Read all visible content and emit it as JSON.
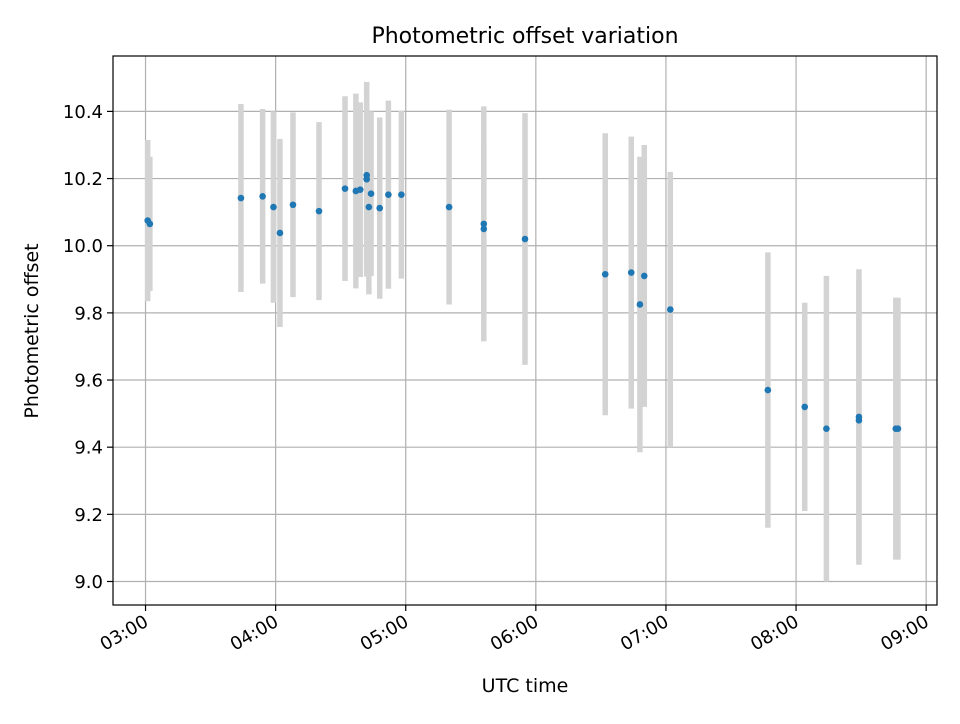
{
  "chart_data": {
    "type": "scatter",
    "title": "Photometric offset variation",
    "xlabel": "UTC time",
    "ylabel": "Photometric offset",
    "grid": true,
    "xlim": [
      "02:45",
      "09:05"
    ],
    "ylim": [
      8.93,
      10.565
    ],
    "x_ticks": [
      "03:00",
      "04:00",
      "05:00",
      "06:00",
      "07:00",
      "08:00",
      "09:00"
    ],
    "y_ticks": [
      "9.0",
      "9.2",
      "9.4",
      "9.6",
      "9.8",
      "10.0",
      "10.2",
      "10.4"
    ],
    "colors": {
      "points": "#1f77b4",
      "errorbars": "#d3d3d3",
      "grid": "#b0b0b0",
      "axes": "#000000"
    },
    "series": [
      {
        "points": [
          {
            "x": "03:01",
            "y": 10.075,
            "err": 0.24
          },
          {
            "x": "03:02",
            "y": 10.065,
            "err": 0.2
          },
          {
            "x": "03:44",
            "y": 10.142,
            "err": 0.28
          },
          {
            "x": "03:54",
            "y": 10.147,
            "err": 0.26
          },
          {
            "x": "03:59",
            "y": 10.115,
            "err": 0.285
          },
          {
            "x": "04:02",
            "y": 10.038,
            "err": 0.28
          },
          {
            "x": "04:08",
            "y": 10.122,
            "err": 0.275
          },
          {
            "x": "04:20",
            "y": 10.103,
            "err": 0.265
          },
          {
            "x": "04:32",
            "y": 10.17,
            "err": 0.275
          },
          {
            "x": "04:37",
            "y": 10.163,
            "err": 0.29
          },
          {
            "x": "04:39",
            "y": 10.167,
            "err": 0.26
          },
          {
            "x": "04:42",
            "y": 10.21,
            "err": 0.275
          },
          {
            "x": "04:42",
            "y": 10.198,
            "err": 0.29
          },
          {
            "x": "04:43",
            "y": 10.115,
            "err": 0.26
          },
          {
            "x": "04:44",
            "y": 10.155,
            "err": 0.245
          },
          {
            "x": "04:48",
            "y": 10.112,
            "err": 0.27
          },
          {
            "x": "04:52",
            "y": 10.152,
            "err": 0.28
          },
          {
            "x": "04:58",
            "y": 10.152,
            "err": 0.25
          },
          {
            "x": "05:20",
            "y": 10.115,
            "err": 0.29
          },
          {
            "x": "05:36",
            "y": 10.065,
            "err": 0.35
          },
          {
            "x": "05:36",
            "y": 10.05,
            "err": 0.25
          },
          {
            "x": "05:55",
            "y": 10.02,
            "err": 0.375
          },
          {
            "x": "06:32",
            "y": 9.915,
            "err": 0.42
          },
          {
            "x": "06:44",
            "y": 9.92,
            "err": 0.405
          },
          {
            "x": "06:48",
            "y": 9.825,
            "err": 0.44
          },
          {
            "x": "06:50",
            "y": 9.91,
            "err": 0.39
          },
          {
            "x": "07:02",
            "y": 9.81,
            "err": 0.41
          },
          {
            "x": "07:47",
            "y": 9.57,
            "err": 0.41
          },
          {
            "x": "08:04",
            "y": 9.52,
            "err": 0.31
          },
          {
            "x": "08:14",
            "y": 9.455,
            "err": 0.455
          },
          {
            "x": "08:29",
            "y": 9.49,
            "err": 0.44
          },
          {
            "x": "08:29",
            "y": 9.48,
            "err": 0.42
          },
          {
            "x": "08:46",
            "y": 9.455,
            "err": 0.39
          },
          {
            "x": "08:47",
            "y": 9.455,
            "err": 0.39
          }
        ]
      }
    ]
  }
}
